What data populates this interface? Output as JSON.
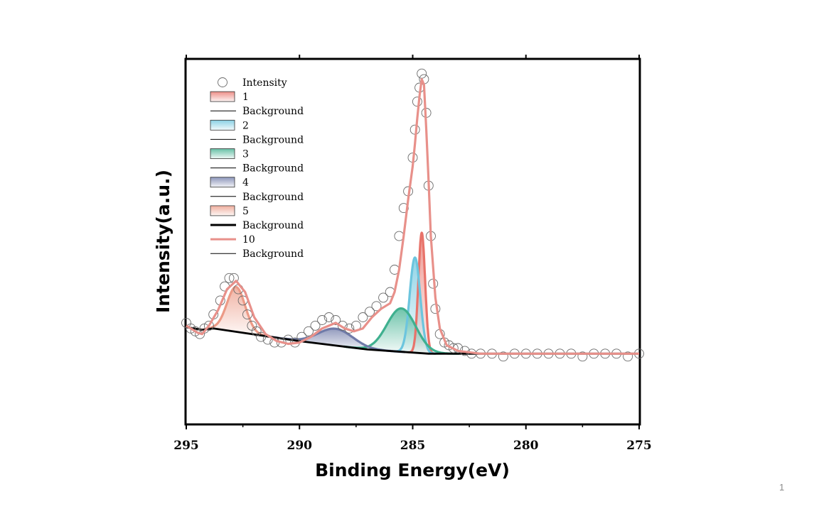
{
  "page": {
    "number": "1"
  },
  "chart_data": {
    "type": "line",
    "title": "",
    "xlabel": "Binding Energy(eV)",
    "ylabel": "Intensity(a.u.)",
    "xlim": [
      295,
      275
    ],
    "x_reversed": true,
    "ylim": [
      -0.25,
      1.05
    ],
    "x_ticks": [
      295,
      290,
      285,
      280,
      275
    ],
    "x_tick_labels": [
      "295",
      "290",
      "285",
      "280",
      "275"
    ],
    "y_ticks_visible": false,
    "legend_position": "top-left",
    "legend": [
      {
        "label": "Intensity",
        "kind": "marker"
      },
      {
        "label": "1",
        "kind": "fill",
        "color": "#e8736a"
      },
      {
        "label": "Background",
        "kind": "line",
        "width": "thin"
      },
      {
        "label": "2",
        "kind": "fill",
        "color": "#6cc5de"
      },
      {
        "label": "Background",
        "kind": "line",
        "width": "thin"
      },
      {
        "label": "3",
        "kind": "fill",
        "color": "#3fb08f"
      },
      {
        "label": "Background",
        "kind": "line",
        "width": "thin"
      },
      {
        "label": "4",
        "kind": "fill",
        "color": "#6f7aa8"
      },
      {
        "label": "Background",
        "kind": "line",
        "width": "thin"
      },
      {
        "label": "5",
        "kind": "fill",
        "color": "#ec9a86"
      },
      {
        "label": "Background",
        "kind": "line",
        "width": "thick"
      },
      {
        "label": "10",
        "kind": "line",
        "width": "thick",
        "color": "#e8908a"
      },
      {
        "label": "Background",
        "kind": "line",
        "width": "thin"
      }
    ],
    "background": {
      "name": "Background",
      "color": "#000000",
      "x": [
        295,
        294.3,
        293.8,
        290,
        287,
        284.3,
        282,
        280,
        275
      ],
      "y": [
        0.095,
        0.085,
        0.09,
        0.045,
        0.015,
        0.0,
        0.0,
        0.0,
        0.0
      ]
    },
    "peaks": [
      {
        "name": "1",
        "center": 284.6,
        "amplitude": 0.43,
        "fwhm": 0.35,
        "color": "#e8736a"
      },
      {
        "name": "2",
        "center": 284.9,
        "amplitude": 0.34,
        "fwhm": 0.55,
        "color": "#6cc5de"
      },
      {
        "name": "3",
        "center": 285.5,
        "amplitude": 0.155,
        "fwhm": 1.5,
        "color": "#3fb08f"
      },
      {
        "name": "4",
        "center": 288.4,
        "amplitude": 0.06,
        "fwhm": 1.8,
        "color": "#6f7aa8"
      },
      {
        "name": "5",
        "center": 292.8,
        "amplitude": 0.16,
        "fwhm": 0.95,
        "color": "#ec9a86"
      }
    ],
    "envelope": {
      "name": "10",
      "color": "#e8908a",
      "x": [
        295,
        294.7,
        294.5,
        294.3,
        294,
        293.6,
        293.2,
        292.8,
        292.4,
        292,
        291.5,
        291,
        290.5,
        290,
        289.5,
        289,
        288.7,
        288.4,
        288,
        287.6,
        287.2,
        286.8,
        286.4,
        286,
        285.8,
        285.6,
        285.4,
        285.2,
        285,
        284.9,
        284.8,
        284.7,
        284.6,
        284.5,
        284.4,
        284.3,
        284.2,
        284,
        283.8,
        283.5,
        283,
        282.5,
        282,
        281,
        280,
        279,
        278,
        277,
        276,
        275
      ],
      "y": [
        0.1,
        0.085,
        0.075,
        0.07,
        0.1,
        0.155,
        0.23,
        0.26,
        0.22,
        0.13,
        0.07,
        0.045,
        0.035,
        0.04,
        0.06,
        0.09,
        0.1,
        0.11,
        0.09,
        0.08,
        0.09,
        0.13,
        0.16,
        0.18,
        0.22,
        0.3,
        0.42,
        0.55,
        0.67,
        0.75,
        0.84,
        0.92,
        0.98,
        0.96,
        0.8,
        0.62,
        0.42,
        0.2,
        0.09,
        0.03,
        0.01,
        0.005,
        0.0,
        0.0,
        0.0,
        0.0,
        0.0,
        0.0,
        0.0,
        0.0
      ]
    },
    "intensity": {
      "name": "Intensity",
      "marker": "open-circle",
      "x": [
        295,
        294.8,
        294.6,
        294.4,
        294.2,
        294,
        293.8,
        293.5,
        293.3,
        293.1,
        292.9,
        292.7,
        292.5,
        292.3,
        292.1,
        291.9,
        291.7,
        291.4,
        291.1,
        290.8,
        290.5,
        290.2,
        289.9,
        289.6,
        289.3,
        289,
        288.7,
        288.4,
        288.1,
        287.8,
        287.5,
        287.2,
        286.9,
        286.6,
        286.3,
        286,
        285.8,
        285.6,
        285.4,
        285.2,
        285,
        284.9,
        284.8,
        284.7,
        284.6,
        284.5,
        284.4,
        284.3,
        284.2,
        284.1,
        284,
        283.8,
        283.6,
        283.4,
        283.2,
        283,
        282.7,
        282.4,
        282,
        281.5,
        281,
        280.5,
        280,
        279.5,
        279,
        278.5,
        278,
        277.5,
        277,
        276.5,
        276,
        275.5,
        275
      ],
      "y": [
        0.11,
        0.09,
        0.08,
        0.07,
        0.09,
        0.1,
        0.14,
        0.19,
        0.24,
        0.27,
        0.27,
        0.23,
        0.19,
        0.14,
        0.1,
        0.08,
        0.06,
        0.05,
        0.04,
        0.04,
        0.05,
        0.04,
        0.06,
        0.08,
        0.1,
        0.12,
        0.13,
        0.12,
        0.1,
        0.09,
        0.1,
        0.13,
        0.15,
        0.17,
        0.2,
        0.22,
        0.3,
        0.42,
        0.52,
        0.58,
        0.7,
        0.8,
        0.9,
        0.95,
        1.0,
        0.98,
        0.86,
        0.6,
        0.42,
        0.25,
        0.16,
        0.07,
        0.04,
        0.03,
        0.02,
        0.02,
        0.01,
        0.0,
        0.0,
        0.0,
        -0.01,
        0.0,
        0.0,
        0.0,
        0.0,
        0.0,
        0.0,
        -0.01,
        0.0,
        0.0,
        0.0,
        -0.01,
        0.0
      ]
    }
  }
}
